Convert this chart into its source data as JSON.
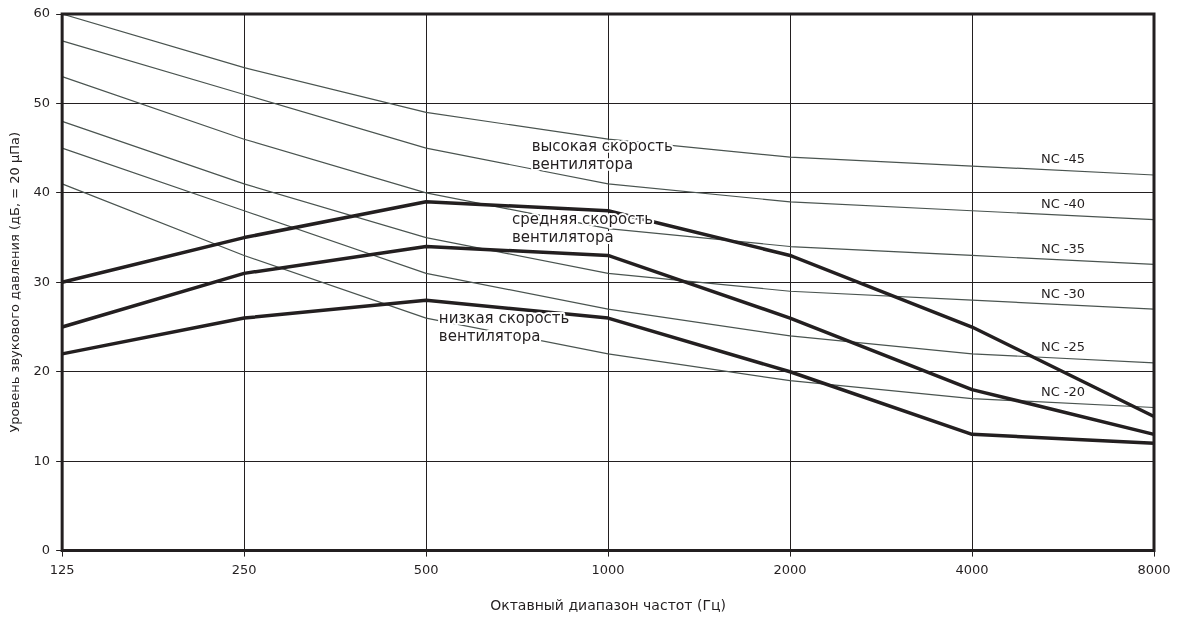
{
  "chart_data": {
    "type": "line",
    "xlabel": "Октавный диапазон частот (Гц)",
    "ylabel": "Уровень звукового давления (дБ, = 20 μПа)",
    "categories": [
      "125",
      "250",
      "500",
      "1000",
      "2000",
      "4000",
      "8000"
    ],
    "ylim": [
      0,
      60
    ],
    "yticks": [
      0,
      10,
      20,
      30,
      40,
      50,
      60
    ],
    "grid": true,
    "marker": "none",
    "line_style": "solid",
    "series": [
      {
        "name": "NC -45",
        "color": "#4a5450",
        "values": [
          60,
          54,
          49,
          46,
          44,
          43,
          42
        ]
      },
      {
        "name": "NC -40",
        "color": "#4a5450",
        "values": [
          57,
          51,
          45,
          41,
          39,
          38,
          37
        ]
      },
      {
        "name": "NC -35",
        "color": "#4a5450",
        "values": [
          53,
          46,
          40,
          36,
          34,
          33,
          32
        ]
      },
      {
        "name": "NC -30",
        "color": "#4a5450",
        "values": [
          48,
          41,
          35,
          31,
          29,
          28,
          27
        ]
      },
      {
        "name": "NC -25",
        "color": "#4a5450",
        "values": [
          45,
          38,
          31,
          27,
          24,
          22,
          21
        ]
      },
      {
        "name": "NC -20",
        "color": "#4a5450",
        "values": [
          41,
          33,
          26,
          22,
          19,
          17,
          16
        ]
      },
      {
        "color": "#231f20",
        "values": [
          30,
          35,
          39,
          38,
          33,
          25,
          15
        ]
      },
      {
        "color": "#231f20",
        "values": [
          25,
          31,
          34,
          33,
          26,
          18,
          13
        ]
      },
      {
        "color": "#231f20",
        "values": [
          22,
          26,
          28,
          26,
          20,
          13,
          12
        ]
      }
    ],
    "annotations": [
      "высокая скорость\nвентилятора",
      "средняя скорость\nвентилятора",
      "низкая скорость\nвентилятора"
    ],
    "legend": false
  }
}
